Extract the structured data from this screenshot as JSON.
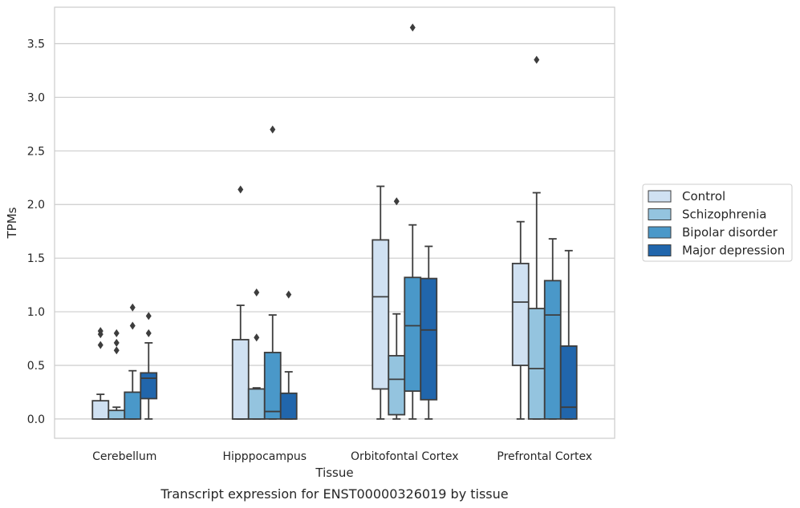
{
  "chart_data": {
    "type": "box",
    "caption": "Transcript expression for ENST00000326019 by tissue",
    "xlabel": "Tissue",
    "ylabel": "TPMs",
    "ylim": [
      -0.18,
      3.84
    ],
    "yticks": [
      "0.0",
      "0.5",
      "1.0",
      "1.5",
      "2.0",
      "2.5",
      "3.0",
      "3.5"
    ],
    "grid": true,
    "legend_position": "right",
    "categories": [
      "Cerebellum",
      "Hipppocampus",
      "Orbitofontal Cortex",
      "Prefrontal Cortex"
    ],
    "series": [
      {
        "name": "Control",
        "color": "#d0e1f2",
        "boxes": [
          {
            "whislo": 0.0,
            "q1": 0.0,
            "med": 0.0,
            "q3": 0.17,
            "whishi": 0.23,
            "fliers": [
              0.69,
              0.79,
              0.82
            ]
          },
          {
            "whislo": 0.0,
            "q1": 0.0,
            "med": 0.0,
            "q3": 0.74,
            "whishi": 1.06,
            "fliers": [
              2.14
            ]
          },
          {
            "whislo": 0.0,
            "q1": 0.28,
            "med": 1.14,
            "q3": 1.67,
            "whishi": 2.17,
            "fliers": []
          },
          {
            "whislo": 0.0,
            "q1": 0.5,
            "med": 1.09,
            "q3": 1.45,
            "whishi": 1.84,
            "fliers": []
          }
        ]
      },
      {
        "name": "Schizophrenia",
        "color": "#94c4df",
        "boxes": [
          {
            "whislo": 0.0,
            "q1": 0.0,
            "med": 0.0,
            "q3": 0.08,
            "whishi": 0.11,
            "fliers": [
              0.64,
              0.71,
              0.8
            ]
          },
          {
            "whislo": 0.0,
            "q1": 0.0,
            "med": 0.0,
            "q3": 0.28,
            "whishi": 0.29,
            "fliers": [
              0.76,
              1.18
            ]
          },
          {
            "whislo": 0.0,
            "q1": 0.04,
            "med": 0.37,
            "q3": 0.59,
            "whishi": 0.98,
            "fliers": [
              2.03
            ]
          },
          {
            "whislo": 0.0,
            "q1": 0.0,
            "med": 0.47,
            "q3": 1.03,
            "whishi": 2.11,
            "fliers": [
              3.35
            ]
          }
        ]
      },
      {
        "name": "Bipolar disorder",
        "color": "#4a98c9",
        "boxes": [
          {
            "whislo": 0.0,
            "q1": 0.0,
            "med": 0.0,
            "q3": 0.25,
            "whishi": 0.45,
            "fliers": [
              0.87,
              1.04
            ]
          },
          {
            "whislo": 0.0,
            "q1": 0.0,
            "med": 0.07,
            "q3": 0.62,
            "whishi": 0.97,
            "fliers": [
              2.7
            ]
          },
          {
            "whislo": 0.0,
            "q1": 0.26,
            "med": 0.87,
            "q3": 1.32,
            "whishi": 1.81,
            "fliers": [
              3.65
            ]
          },
          {
            "whislo": 0.0,
            "q1": 0.0,
            "med": 0.97,
            "q3": 1.29,
            "whishi": 1.68,
            "fliers": []
          }
        ]
      },
      {
        "name": "Major depression",
        "color": "#2166ac",
        "boxes": [
          {
            "whislo": 0.0,
            "q1": 0.19,
            "med": 0.38,
            "q3": 0.43,
            "whishi": 0.71,
            "fliers": [
              0.8,
              0.96
            ]
          },
          {
            "whislo": 0.0,
            "q1": 0.0,
            "med": 0.0,
            "q3": 0.24,
            "whishi": 0.44,
            "fliers": [
              1.16
            ]
          },
          {
            "whislo": 0.0,
            "q1": 0.18,
            "med": 0.83,
            "q3": 1.31,
            "whishi": 1.61,
            "fliers": []
          },
          {
            "whislo": 0.0,
            "q1": 0.0,
            "med": 0.11,
            "q3": 0.68,
            "whishi": 1.57,
            "fliers": []
          }
        ]
      }
    ]
  }
}
